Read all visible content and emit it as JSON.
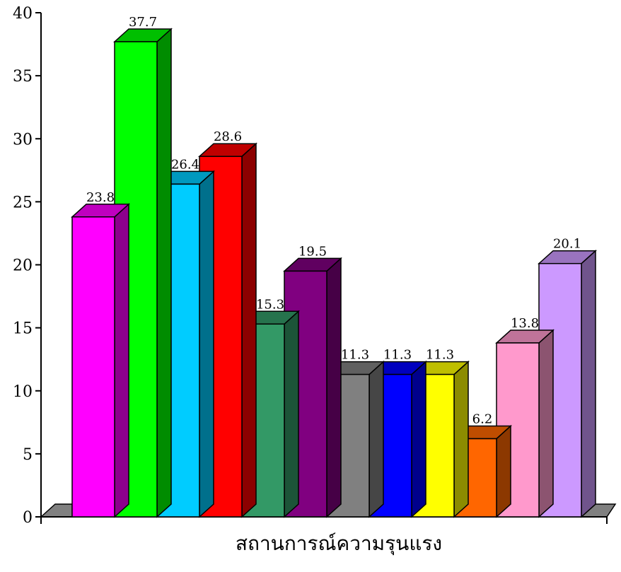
{
  "chart_data": {
    "type": "bar",
    "xlabel": "สถานการณ์ความรุนแรง",
    "ylabel": "",
    "ylim": [
      0,
      40
    ],
    "yticks": [
      0,
      5,
      10,
      15,
      20,
      25,
      30,
      35,
      40
    ],
    "style": "3d",
    "grid": false,
    "legend": "none",
    "values": [
      23.8,
      37.7,
      26.4,
      28.6,
      15.3,
      19.5,
      11.3,
      11.3,
      11.3,
      6.2,
      13.8,
      20.1
    ],
    "value_labels": [
      "23.8",
      "37.7",
      "26.4",
      "28.6",
      "15.3",
      "19.5",
      "11.3",
      "11.3",
      "11.3",
      "6.2",
      "13.8",
      "20.1"
    ],
    "colors": [
      "#FF00FF",
      "#00FF00",
      "#00CCFF",
      "#FF0000",
      "#339966",
      "#800080",
      "#808080",
      "#0000FF",
      "#FFFF00",
      "#FF6600",
      "#FF99CC",
      "#CC99FF"
    ],
    "floor_color": "#808080"
  }
}
